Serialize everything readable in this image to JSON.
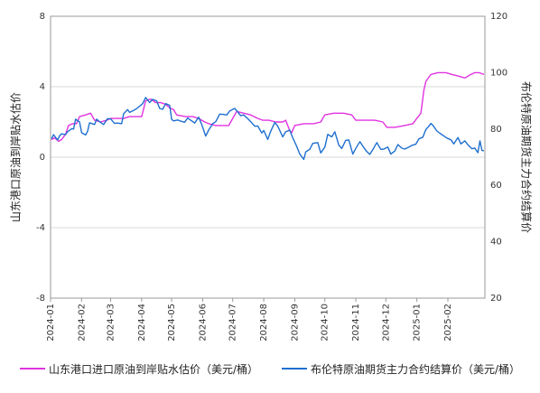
{
  "chart_data": {
    "type": "line",
    "title": "",
    "xlabel": "",
    "y_left_label": "山东港口原油到岸贴水估价",
    "y_right_label": "布伦特原油期货主力合约结算价",
    "y_left_range": [
      -8,
      8
    ],
    "y_left_ticks": [
      "8",
      "4",
      "0",
      "-4",
      "-8"
    ],
    "y_right_range": [
      20,
      120
    ],
    "y_right_ticks": [
      "120",
      "100",
      "80",
      "60",
      "40",
      "20"
    ],
    "x_range": [
      "2024-01-01",
      "2025-03-10"
    ],
    "x_ticks": [
      "2024-01",
      "2024-02",
      "2024-03",
      "2024-04",
      "2024-05",
      "2024-06",
      "2024-07",
      "2024-08",
      "2024-09",
      "2024-10",
      "2024-11",
      "2024-12",
      "2025-01",
      "2025-02"
    ],
    "grid": "horizontal",
    "legend_position": "bottom",
    "series": [
      {
        "name": "山东港口进口原油到岸贴水估价（美元/桶）",
        "axis": "left",
        "color": "#e033e0",
        "points": [
          [
            "2024-01-02",
            1.0
          ],
          [
            "2024-01-05",
            1.1
          ],
          [
            "2024-01-09",
            0.9
          ],
          [
            "2024-01-12",
            1.0
          ],
          [
            "2024-01-16",
            1.3
          ],
          [
            "2024-01-19",
            1.8
          ],
          [
            "2024-01-23",
            1.9
          ],
          [
            "2024-01-27",
            1.9
          ],
          [
            "2024-01-30",
            2.3
          ],
          [
            "2024-02-05",
            2.4
          ],
          [
            "2024-02-10",
            2.5
          ],
          [
            "2024-02-14",
            2.1
          ],
          [
            "2024-02-20",
            2.0
          ],
          [
            "2024-02-26",
            2.1
          ],
          [
            "2024-03-01",
            2.2
          ],
          [
            "2024-03-07",
            2.2
          ],
          [
            "2024-03-14",
            2.2
          ],
          [
            "2024-03-20",
            2.3
          ],
          [
            "2024-03-25",
            2.3
          ],
          [
            "2024-04-01",
            2.3
          ],
          [
            "2024-04-05",
            3.2
          ],
          [
            "2024-04-10",
            3.3
          ],
          [
            "2024-04-15",
            3.1
          ],
          [
            "2024-04-20",
            3.1
          ],
          [
            "2024-04-25",
            3.0
          ],
          [
            "2024-04-29",
            2.8
          ],
          [
            "2024-05-03",
            2.7
          ],
          [
            "2024-05-06",
            2.4
          ],
          [
            "2024-05-15",
            2.3
          ],
          [
            "2024-05-22",
            2.3
          ],
          [
            "2024-05-28",
            2.2
          ],
          [
            "2024-06-03",
            2.0
          ],
          [
            "2024-06-07",
            1.9
          ],
          [
            "2024-06-14",
            1.8
          ],
          [
            "2024-06-21",
            1.8
          ],
          [
            "2024-06-27",
            1.8
          ],
          [
            "2024-07-01",
            2.2
          ],
          [
            "2024-07-05",
            2.6
          ],
          [
            "2024-07-12",
            2.5
          ],
          [
            "2024-07-19",
            2.4
          ],
          [
            "2024-07-26",
            2.2
          ],
          [
            "2024-07-31",
            2.1
          ],
          [
            "2024-08-06",
            2.1
          ],
          [
            "2024-08-13",
            2.0
          ],
          [
            "2024-08-20",
            2.0
          ],
          [
            "2024-08-23",
            2.1
          ],
          [
            "2024-08-27",
            1.5
          ],
          [
            "2024-08-29",
            1.4
          ],
          [
            "2024-09-01",
            1.8
          ],
          [
            "2024-09-10",
            1.9
          ],
          [
            "2024-09-20",
            1.9
          ],
          [
            "2024-09-27",
            2.0
          ],
          [
            "2024-10-01",
            2.4
          ],
          [
            "2024-10-10",
            2.5
          ],
          [
            "2024-10-20",
            2.5
          ],
          [
            "2024-10-28",
            2.4
          ],
          [
            "2024-11-01",
            2.1
          ],
          [
            "2024-11-10",
            2.1
          ],
          [
            "2024-11-20",
            2.1
          ],
          [
            "2024-11-28",
            2.0
          ],
          [
            "2024-12-02",
            1.7
          ],
          [
            "2024-12-10",
            1.7
          ],
          [
            "2024-12-20",
            1.8
          ],
          [
            "2024-12-28",
            1.9
          ],
          [
            "2025-01-01",
            2.2
          ],
          [
            "2025-01-05",
            2.5
          ],
          [
            "2025-01-08",
            3.8
          ],
          [
            "2025-01-10",
            4.3
          ],
          [
            "2025-01-15",
            4.7
          ],
          [
            "2025-01-22",
            4.8
          ],
          [
            "2025-01-30",
            4.8
          ],
          [
            "2025-02-05",
            4.7
          ],
          [
            "2025-02-12",
            4.6
          ],
          [
            "2025-02-18",
            4.5
          ],
          [
            "2025-02-24",
            4.7
          ],
          [
            "2025-02-28",
            4.8
          ],
          [
            "2025-03-04",
            4.8
          ],
          [
            "2025-03-09",
            4.7
          ]
        ]
      },
      {
        "name": "布伦特原油期货主力合约结算价（美元/桶）",
        "axis": "right",
        "color": "#1f6fd0",
        "points": [
          [
            "2024-01-02",
            76.5
          ],
          [
            "2024-01-04",
            78.0
          ],
          [
            "2024-01-08",
            76.1
          ],
          [
            "2024-01-10",
            77.6
          ],
          [
            "2024-01-12",
            78.3
          ],
          [
            "2024-01-16",
            78.0
          ],
          [
            "2024-01-18",
            79.0
          ],
          [
            "2024-01-22",
            80.1
          ],
          [
            "2024-01-24",
            80.0
          ],
          [
            "2024-01-26",
            83.5
          ],
          [
            "2024-01-30",
            82.5
          ],
          [
            "2024-02-01",
            78.7
          ],
          [
            "2024-02-05",
            77.9
          ],
          [
            "2024-02-07",
            79.2
          ],
          [
            "2024-02-09",
            82.2
          ],
          [
            "2024-02-14",
            81.6
          ],
          [
            "2024-02-16",
            83.5
          ],
          [
            "2024-02-20",
            82.3
          ],
          [
            "2024-02-23",
            81.6
          ],
          [
            "2024-02-27",
            83.7
          ],
          [
            "2024-03-01",
            83.6
          ],
          [
            "2024-03-05",
            82.0
          ],
          [
            "2024-03-08",
            82.1
          ],
          [
            "2024-03-12",
            81.9
          ],
          [
            "2024-03-14",
            85.4
          ],
          [
            "2024-03-18",
            86.9
          ],
          [
            "2024-03-20",
            85.9
          ],
          [
            "2024-03-25",
            86.8
          ],
          [
            "2024-03-28",
            87.5
          ],
          [
            "2024-04-02",
            89.0
          ],
          [
            "2024-04-05",
            91.2
          ],
          [
            "2024-04-09",
            89.4
          ],
          [
            "2024-04-12",
            90.5
          ],
          [
            "2024-04-16",
            90.0
          ],
          [
            "2024-04-19",
            87.3
          ],
          [
            "2024-04-22",
            87.0
          ],
          [
            "2024-04-25",
            89.0
          ],
          [
            "2024-04-29",
            88.4
          ],
          [
            "2024-05-01",
            83.4
          ],
          [
            "2024-05-03",
            82.9
          ],
          [
            "2024-05-07",
            83.2
          ],
          [
            "2024-05-10",
            82.8
          ],
          [
            "2024-05-14",
            82.4
          ],
          [
            "2024-05-17",
            83.9
          ],
          [
            "2024-05-21",
            82.9
          ],
          [
            "2024-05-24",
            82.1
          ],
          [
            "2024-05-28",
            84.2
          ],
          [
            "2024-05-31",
            81.6
          ],
          [
            "2024-06-04",
            77.5
          ],
          [
            "2024-06-07",
            79.6
          ],
          [
            "2024-06-11",
            81.9
          ],
          [
            "2024-06-14",
            82.6
          ],
          [
            "2024-06-18",
            85.3
          ],
          [
            "2024-06-21",
            85.2
          ],
          [
            "2024-06-25",
            85.0
          ],
          [
            "2024-06-28",
            86.4
          ],
          [
            "2024-07-03",
            87.3
          ],
          [
            "2024-07-05",
            86.5
          ],
          [
            "2024-07-09",
            84.7
          ],
          [
            "2024-07-12",
            85.0
          ],
          [
            "2024-07-16",
            83.7
          ],
          [
            "2024-07-19",
            82.6
          ],
          [
            "2024-07-23",
            81.0
          ],
          [
            "2024-07-26",
            81.1
          ],
          [
            "2024-07-30",
            78.6
          ],
          [
            "2024-08-01",
            79.5
          ],
          [
            "2024-08-05",
            76.3
          ],
          [
            "2024-08-08",
            79.2
          ],
          [
            "2024-08-12",
            82.3
          ],
          [
            "2024-08-15",
            81.0
          ],
          [
            "2024-08-20",
            77.2
          ],
          [
            "2024-08-23",
            79.0
          ],
          [
            "2024-08-27",
            79.6
          ],
          [
            "2024-08-30",
            76.9
          ],
          [
            "2024-09-03",
            73.8
          ],
          [
            "2024-09-06",
            71.1
          ],
          [
            "2024-09-10",
            69.2
          ],
          [
            "2024-09-12",
            71.9
          ],
          [
            "2024-09-16",
            72.8
          ],
          [
            "2024-09-19",
            74.9
          ],
          [
            "2024-09-24",
            75.2
          ],
          [
            "2024-09-27",
            71.5
          ],
          [
            "2024-10-01",
            73.6
          ],
          [
            "2024-10-04",
            78.1
          ],
          [
            "2024-10-08",
            77.2
          ],
          [
            "2024-10-11",
            79.0
          ],
          [
            "2024-10-15",
            74.3
          ],
          [
            "2024-10-18",
            73.1
          ],
          [
            "2024-10-22",
            76.0
          ],
          [
            "2024-10-25",
            76.1
          ],
          [
            "2024-10-29",
            71.1
          ],
          [
            "2024-11-01",
            73.1
          ],
          [
            "2024-11-05",
            75.5
          ],
          [
            "2024-11-08",
            73.9
          ],
          [
            "2024-11-12",
            72.0
          ],
          [
            "2024-11-15",
            71.0
          ],
          [
            "2024-11-19",
            73.3
          ],
          [
            "2024-11-22",
            75.2
          ],
          [
            "2024-11-26",
            72.8
          ],
          [
            "2024-11-29",
            72.9
          ],
          [
            "2024-12-03",
            73.6
          ],
          [
            "2024-12-06",
            71.1
          ],
          [
            "2024-12-10",
            72.2
          ],
          [
            "2024-12-13",
            74.5
          ],
          [
            "2024-12-17",
            73.2
          ],
          [
            "2024-12-20",
            72.9
          ],
          [
            "2024-12-24",
            73.6
          ],
          [
            "2024-12-27",
            74.2
          ],
          [
            "2024-12-31",
            74.6
          ],
          [
            "2025-01-03",
            76.5
          ],
          [
            "2025-01-07",
            77.1
          ],
          [
            "2025-01-10",
            79.8
          ],
          [
            "2025-01-13",
            81.0
          ],
          [
            "2025-01-15",
            82.0
          ],
          [
            "2025-01-17",
            81.3
          ],
          [
            "2025-01-21",
            79.3
          ],
          [
            "2025-01-24",
            78.5
          ],
          [
            "2025-01-28",
            77.5
          ],
          [
            "2025-01-31",
            76.8
          ],
          [
            "2025-02-04",
            76.2
          ],
          [
            "2025-02-07",
            74.7
          ],
          [
            "2025-02-11",
            77.0
          ],
          [
            "2025-02-14",
            74.7
          ],
          [
            "2025-02-18",
            75.8
          ],
          [
            "2025-02-21",
            74.4
          ],
          [
            "2025-02-25",
            73.0
          ],
          [
            "2025-02-28",
            73.2
          ],
          [
            "2025-03-03",
            71.6
          ],
          [
            "2025-03-05",
            75.8
          ],
          [
            "2025-03-07",
            72.4
          ],
          [
            "2025-03-09",
            72.3
          ]
        ]
      }
    ]
  }
}
